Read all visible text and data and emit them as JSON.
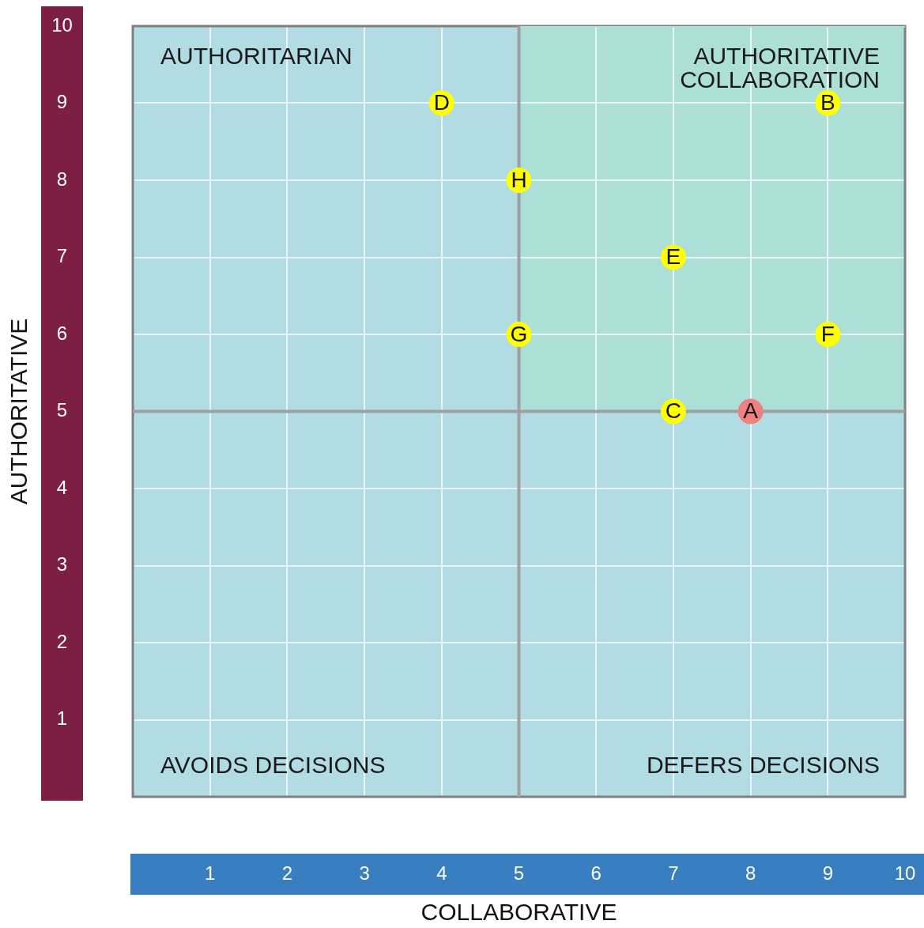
{
  "chart_data": {
    "type": "scatter",
    "xlabel": "COLLABORATIVE",
    "ylabel": "AUTHORITATIVE",
    "xlim": [
      0,
      10
    ],
    "ylim": [
      0,
      10
    ],
    "xticks": [
      1,
      2,
      3,
      4,
      5,
      6,
      7,
      8,
      9,
      10
    ],
    "yticks": [
      1,
      2,
      3,
      4,
      5,
      6,
      7,
      8,
      9,
      10
    ],
    "grid": true,
    "marker": "circle",
    "legend": false,
    "series": [
      {
        "name": "D",
        "color": "#ffff00",
        "x": [
          4
        ],
        "values": [
          9
        ]
      },
      {
        "name": "B",
        "color": "#ffff00",
        "x": [
          9
        ],
        "values": [
          9
        ]
      },
      {
        "name": "H",
        "color": "#ffff00",
        "x": [
          5
        ],
        "values": [
          8
        ]
      },
      {
        "name": "E",
        "color": "#ffff00",
        "x": [
          7
        ],
        "values": [
          7
        ]
      },
      {
        "name": "G",
        "color": "#ffff00",
        "x": [
          5
        ],
        "values": [
          6
        ]
      },
      {
        "name": "F",
        "color": "#ffff00",
        "x": [
          9
        ],
        "values": [
          6
        ]
      },
      {
        "name": "C",
        "color": "#ffff00",
        "x": [
          7
        ],
        "values": [
          5
        ]
      },
      {
        "name": "A",
        "color": "#f08080",
        "x": [
          8
        ],
        "values": [
          5
        ]
      },
      {
        "type": "line",
        "color": "#a0a0a0",
        "marker": "none",
        "x": [
          5,
          5
        ],
        "values": [
          0,
          10
        ]
      },
      {
        "type": "line",
        "color": "#a0a0a0",
        "marker": "none",
        "x": [
          0,
          10
        ],
        "values": [
          5,
          5
        ]
      },
      {
        "type": "line",
        "color": "#acdfd6",
        "marker": "none",
        "x": [
          5,
          10
        ],
        "values": [
          10,
          10
        ],
        "lower": [
          5,
          5
        ],
        "upper": [
          10,
          10
        ]
      }
    ],
    "annotations": [
      "AUTHORITARIAN",
      "AUTHORITATIVE\nCOLLABORATION",
      "AVOIDS DECISIONS",
      "DEFERS DECISIONS"
    ]
  }
}
